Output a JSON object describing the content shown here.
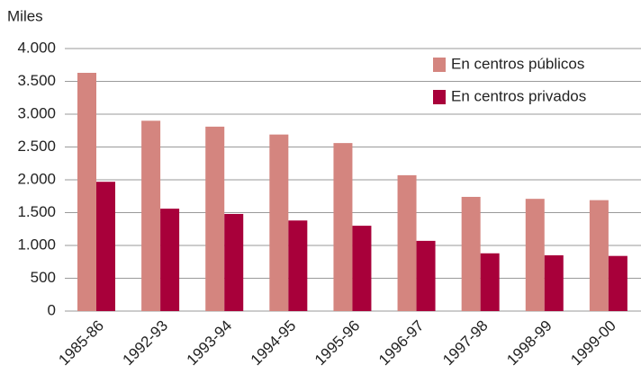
{
  "chart_data": {
    "type": "bar",
    "y_axis_label": "Miles",
    "categories": [
      "1985-86",
      "1992-93",
      "1993-94",
      "1994-95",
      "1995-96",
      "1996-97",
      "1997-98",
      "1998-99",
      "1999-00"
    ],
    "series": [
      {
        "name": "En centros públicos",
        "color": "#d4857f",
        "values": [
          3630,
          2900,
          2810,
          2690,
          2560,
          2070,
          1740,
          1710,
          1690
        ]
      },
      {
        "name": "En centros privados",
        "color": "#a8003a",
        "values": [
          1970,
          1560,
          1480,
          1380,
          1300,
          1070,
          880,
          850,
          840
        ]
      }
    ],
    "ylim": [
      0,
      4000
    ],
    "yticks": [
      0,
      500,
      {
        "value": 1000,
        "label": "1.000"
      },
      {
        "value": 1500,
        "label": "1.500"
      },
      {
        "value": 2000,
        "label": "2.000"
      },
      {
        "value": 2500,
        "label": "2.500"
      },
      {
        "value": 3000,
        "label": "3.000"
      },
      {
        "value": 3500,
        "label": "3.500"
      },
      {
        "value": 4000,
        "label": "4.000"
      }
    ],
    "grid": true,
    "legend": "top-right"
  }
}
